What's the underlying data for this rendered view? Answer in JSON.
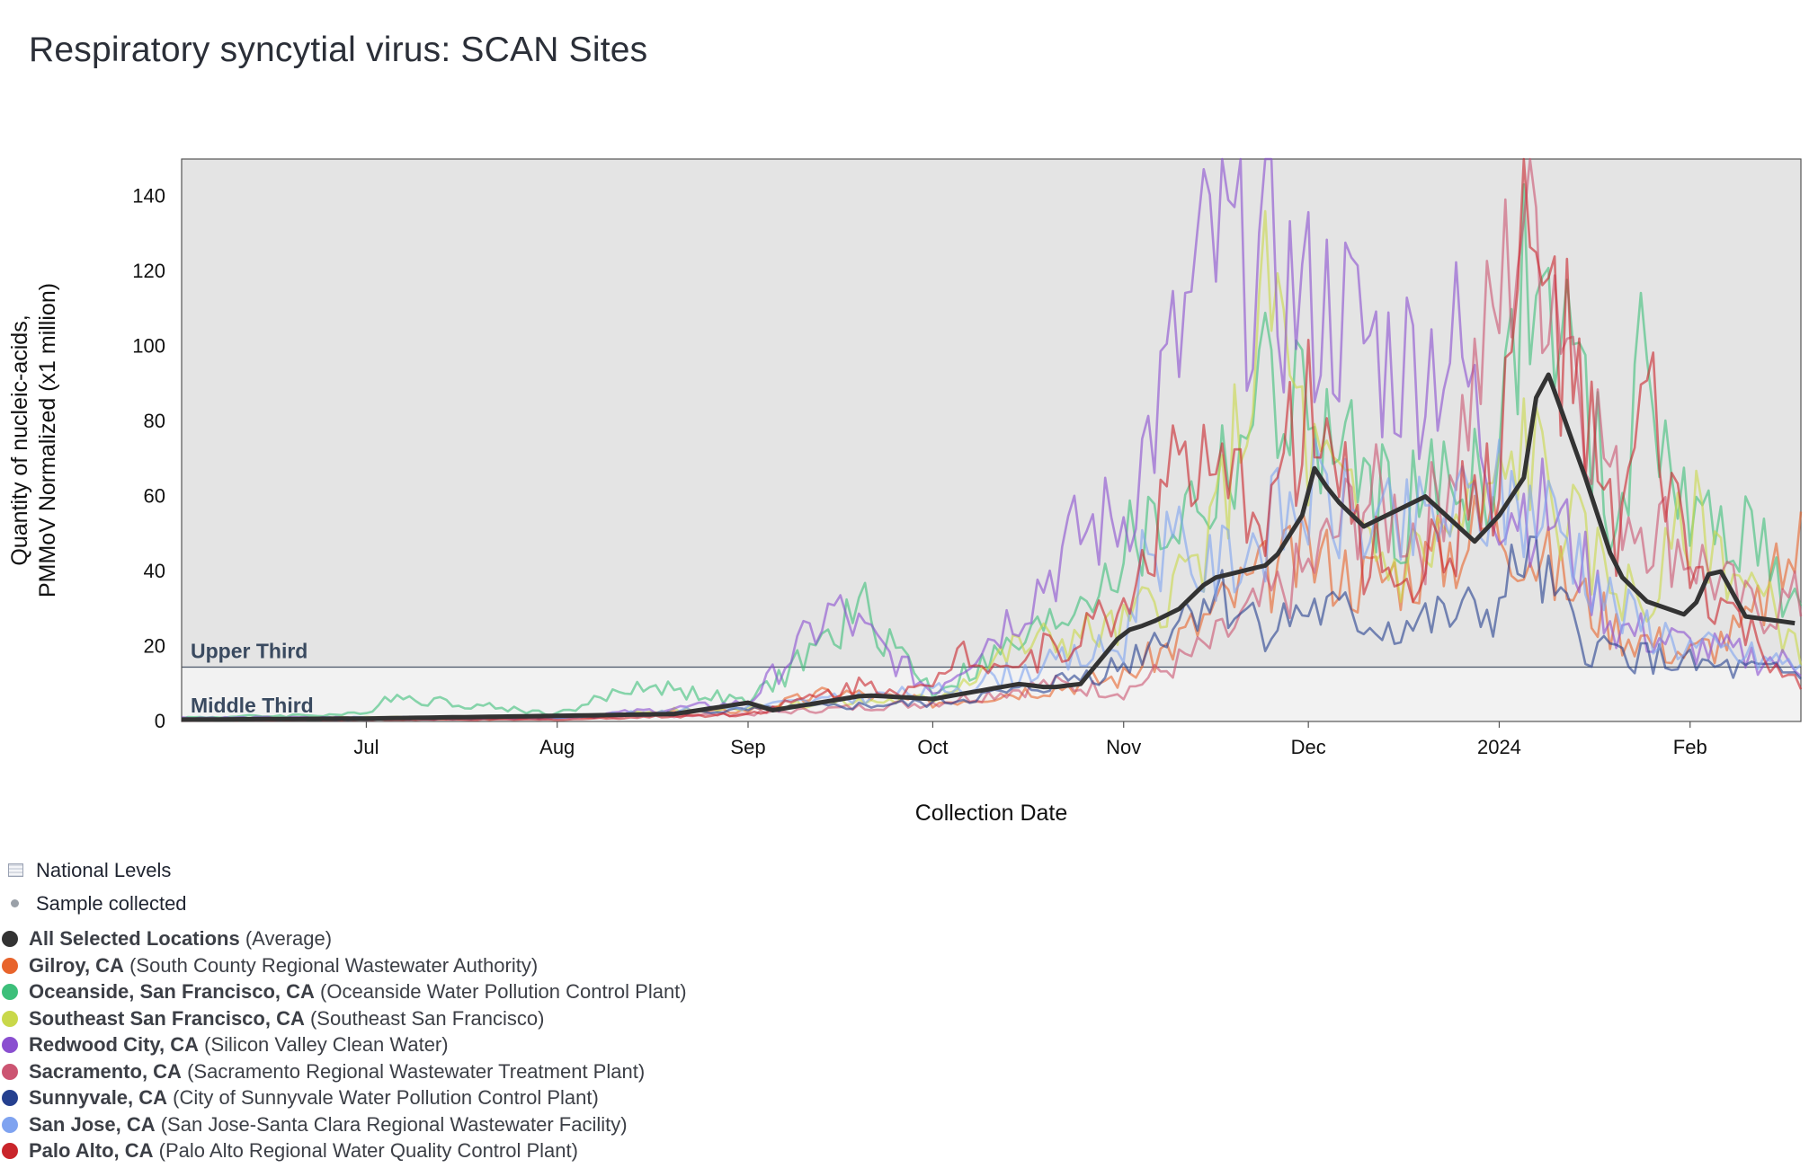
{
  "title": "Respiratory syncytial virus: SCAN Sites",
  "legend_top": [
    {
      "label": "National Levels",
      "icon": "band-swatch-icon"
    },
    {
      "label": "Sample collected",
      "icon": "dot-icon"
    }
  ],
  "chart_data": {
    "type": "line",
    "ylabel_line1": "Quantity of nucleic-acids,",
    "ylabel_line2": "PMMoV Normalized (x1 million)",
    "xlabel": "Collection Date",
    "ylim": [
      0,
      150
    ],
    "yticks": [
      0,
      20,
      40,
      60,
      80,
      100,
      120,
      140
    ],
    "x_start": "2023-06-01",
    "x_end": "2024-02-19",
    "xticks": [
      {
        "date": "2023-07-01",
        "label": "Jul"
      },
      {
        "date": "2023-08-01",
        "label": "Aug"
      },
      {
        "date": "2023-09-01",
        "label": "Sep"
      },
      {
        "date": "2023-10-01",
        "label": "Oct"
      },
      {
        "date": "2023-11-01",
        "label": "Nov"
      },
      {
        "date": "2023-12-01",
        "label": "Dec"
      },
      {
        "date": "2024-01-01",
        "label": "2024"
      },
      {
        "date": "2024-02-01",
        "label": "Feb"
      }
    ],
    "bands": [
      {
        "label": "Upper Third",
        "from": 14.5,
        "to": 150,
        "color": "#e4e4e4"
      },
      {
        "label": "Middle Third",
        "from": 0,
        "to": 14.5,
        "color": "#f2f2f2"
      }
    ],
    "grid": false,
    "series": [
      {
        "name": "Gilroy, CA",
        "desc": "(South County Regional Wastewater Authority)",
        "color": "#e8642c",
        "points": [
          [
            "2023-06-01",
            0.5
          ],
          [
            "2023-07-01",
            0.6
          ],
          [
            "2023-08-01",
            1
          ],
          [
            "2023-09-01",
            3
          ],
          [
            "2023-09-15",
            8
          ],
          [
            "2023-10-01",
            5
          ],
          [
            "2023-10-15",
            8
          ],
          [
            "2023-11-01",
            12
          ],
          [
            "2023-11-10",
            22
          ],
          [
            "2023-11-20",
            35
          ],
          [
            "2023-12-01",
            45
          ],
          [
            "2023-12-10",
            38
          ],
          [
            "2023-12-20",
            42
          ],
          [
            "2024-01-01",
            55
          ],
          [
            "2024-01-10",
            40
          ],
          [
            "2024-01-20",
            25
          ],
          [
            "2024-02-01",
            18
          ],
          [
            "2024-02-10",
            25
          ],
          [
            "2024-02-19",
            48
          ]
        ]
      },
      {
        "name": "Oceanside, San Francisco, CA",
        "desc": "(Oceanside Water Pollution Control Plant)",
        "color": "#3dbf7a",
        "points": [
          [
            "2023-06-01",
            1
          ],
          [
            "2023-07-01",
            2
          ],
          [
            "2023-07-04",
            7
          ],
          [
            "2023-08-01",
            2
          ],
          [
            "2023-08-15",
            10
          ],
          [
            "2023-09-01",
            5
          ],
          [
            "2023-09-20",
            30
          ],
          [
            "2023-10-01",
            8
          ],
          [
            "2023-10-20",
            25
          ],
          [
            "2023-11-01",
            45
          ],
          [
            "2023-11-15",
            60
          ],
          [
            "2023-11-25",
            90
          ],
          [
            "2023-12-01",
            80
          ],
          [
            "2023-12-15",
            55
          ],
          [
            "2024-01-01",
            70
          ],
          [
            "2024-01-05",
            115
          ],
          [
            "2024-01-12",
            100
          ],
          [
            "2024-01-20",
            50
          ],
          [
            "2024-01-25",
            100
          ],
          [
            "2024-02-01",
            50
          ],
          [
            "2024-02-10",
            55
          ],
          [
            "2024-02-19",
            25
          ]
        ]
      },
      {
        "name": "Southeast San Francisco, CA",
        "desc": "(Southeast San Francisco)",
        "color": "#c9d84a",
        "points": [
          [
            "2023-06-01",
            0.5
          ],
          [
            "2023-07-01",
            1
          ],
          [
            "2023-08-01",
            1
          ],
          [
            "2023-09-01",
            4
          ],
          [
            "2023-10-01",
            6
          ],
          [
            "2023-10-15",
            20
          ],
          [
            "2023-11-01",
            25
          ],
          [
            "2023-11-15",
            45
          ],
          [
            "2023-11-25",
            115
          ],
          [
            "2023-12-01",
            70
          ],
          [
            "2023-12-15",
            40
          ],
          [
            "2024-01-01",
            60
          ],
          [
            "2024-01-05",
            75
          ],
          [
            "2024-01-15",
            45
          ],
          [
            "2024-01-25",
            30
          ],
          [
            "2024-02-01",
            55
          ],
          [
            "2024-02-19",
            20
          ]
        ]
      },
      {
        "name": "Redwood City, CA",
        "desc": "(Silicon Valley Clean Water)",
        "color": "#8a4fd0",
        "points": [
          [
            "2023-06-01",
            1
          ],
          [
            "2023-07-01",
            1
          ],
          [
            "2023-08-01",
            1
          ],
          [
            "2023-09-01",
            5
          ],
          [
            "2023-09-15",
            30
          ],
          [
            "2023-10-01",
            8
          ],
          [
            "2023-10-15",
            30
          ],
          [
            "2023-10-25",
            50
          ],
          [
            "2023-11-01",
            55
          ],
          [
            "2023-11-10",
            100
          ],
          [
            "2023-11-15",
            125
          ],
          [
            "2023-11-25",
            120
          ],
          [
            "2023-12-01",
            110
          ],
          [
            "2023-12-05",
            110
          ],
          [
            "2023-12-15",
            95
          ],
          [
            "2023-12-25",
            100
          ],
          [
            "2024-01-01",
            60
          ],
          [
            "2024-01-10",
            55
          ],
          [
            "2024-01-20",
            25
          ],
          [
            "2024-02-01",
            20
          ],
          [
            "2024-02-19",
            15
          ]
        ]
      },
      {
        "name": "Sacramento, CA",
        "desc": "(Sacramento Regional Wastewater Treatment Plant)",
        "color": "#cc5572",
        "points": [
          [
            "2023-06-01",
            0.3
          ],
          [
            "2023-07-01",
            0.5
          ],
          [
            "2023-08-01",
            1
          ],
          [
            "2023-09-01",
            2
          ],
          [
            "2023-10-01",
            5
          ],
          [
            "2023-10-20",
            10
          ],
          [
            "2023-11-01",
            8
          ],
          [
            "2023-11-15",
            20
          ],
          [
            "2023-12-01",
            40
          ],
          [
            "2023-12-10",
            60
          ],
          [
            "2023-12-20",
            50
          ],
          [
            "2023-12-27",
            85
          ],
          [
            "2024-01-01",
            110
          ],
          [
            "2024-01-05",
            140
          ],
          [
            "2024-01-10",
            120
          ],
          [
            "2024-01-20",
            60
          ],
          [
            "2024-02-01",
            45
          ],
          [
            "2024-02-10",
            30
          ],
          [
            "2024-02-19",
            32
          ]
        ]
      },
      {
        "name": "Sunnyvale, CA",
        "desc": "(City of Sunnyvale Water Pollution Control Plant)",
        "color": "#25408f",
        "points": [
          [
            "2023-06-01",
            0.5
          ],
          [
            "2023-07-01",
            0.5
          ],
          [
            "2023-08-01",
            1
          ],
          [
            "2023-09-01",
            3
          ],
          [
            "2023-10-01",
            5
          ],
          [
            "2023-10-15",
            8
          ],
          [
            "2023-11-01",
            15
          ],
          [
            "2023-11-15",
            35
          ],
          [
            "2023-11-25",
            25
          ],
          [
            "2023-12-01",
            30
          ],
          [
            "2023-12-15",
            25
          ],
          [
            "2024-01-01",
            30
          ],
          [
            "2024-01-05",
            45
          ],
          [
            "2024-01-15",
            20
          ],
          [
            "2024-02-01",
            15
          ],
          [
            "2024-02-19",
            12
          ]
        ]
      },
      {
        "name": "San Jose, CA",
        "desc": "(San Jose-Santa Clara Regional Wastewater Facility)",
        "color": "#7fa3f0",
        "points": [
          [
            "2023-06-01",
            0.5
          ],
          [
            "2023-07-01",
            1
          ],
          [
            "2023-08-01",
            1
          ],
          [
            "2023-09-01",
            4
          ],
          [
            "2023-10-01",
            8
          ],
          [
            "2023-10-20",
            15
          ],
          [
            "2023-11-01",
            20
          ],
          [
            "2023-11-05",
            50
          ],
          [
            "2023-11-15",
            40
          ],
          [
            "2023-12-01",
            60
          ],
          [
            "2023-12-15",
            50
          ],
          [
            "2024-01-01",
            60
          ],
          [
            "2024-01-10",
            55
          ],
          [
            "2024-01-20",
            30
          ],
          [
            "2024-02-01",
            20
          ],
          [
            "2024-02-19",
            15
          ]
        ]
      },
      {
        "name": "Palo Alto, CA",
        "desc": "(Palo Alto Regional Water Quality Control Plant)",
        "color": "#c9252b",
        "points": [
          [
            "2023-06-01",
            0.3
          ],
          [
            "2023-07-01",
            0.5
          ],
          [
            "2023-08-01",
            0.5
          ],
          [
            "2023-09-01",
            2
          ],
          [
            "2023-09-20",
            10
          ],
          [
            "2023-10-01",
            8
          ],
          [
            "2023-10-05",
            20
          ],
          [
            "2023-10-15",
            15
          ],
          [
            "2023-11-01",
            30
          ],
          [
            "2023-11-10",
            70
          ],
          [
            "2023-11-15",
            60
          ],
          [
            "2023-11-25",
            60
          ],
          [
            "2023-12-01",
            85
          ],
          [
            "2023-12-10",
            45
          ],
          [
            "2023-12-20",
            40
          ],
          [
            "2024-01-01",
            70
          ],
          [
            "2024-01-05",
            125
          ],
          [
            "2024-01-10",
            110
          ],
          [
            "2024-01-20",
            45
          ],
          [
            "2024-01-25",
            85
          ],
          [
            "2024-02-01",
            40
          ],
          [
            "2024-02-19",
            8
          ]
        ]
      },
      {
        "name": "All Selected Locations",
        "desc": "(Average)",
        "color": "#333333",
        "average": true,
        "points": [
          [
            "2023-06-01",
            0.5
          ],
          [
            "2023-07-01",
            0.8
          ],
          [
            "2023-08-01",
            1.5
          ],
          [
            "2023-08-20",
            2
          ],
          [
            "2023-09-01",
            5
          ],
          [
            "2023-09-05",
            3
          ],
          [
            "2023-09-20",
            7
          ],
          [
            "2023-10-01",
            6
          ],
          [
            "2023-10-15",
            10
          ],
          [
            "2023-10-20",
            9
          ],
          [
            "2023-10-25",
            10
          ],
          [
            "2023-11-01",
            24
          ],
          [
            "2023-11-05",
            26
          ],
          [
            "2023-11-10",
            30
          ],
          [
            "2023-11-15",
            38
          ],
          [
            "2023-11-25",
            42
          ],
          [
            "2023-11-30",
            55
          ],
          [
            "2023-12-01",
            70
          ],
          [
            "2023-12-05",
            60
          ],
          [
            "2023-12-10",
            52
          ],
          [
            "2023-12-20",
            60
          ],
          [
            "2023-12-28",
            48
          ],
          [
            "2024-01-01",
            55
          ],
          [
            "2024-01-05",
            65
          ],
          [
            "2024-01-08",
            97
          ],
          [
            "2024-01-10",
            88
          ],
          [
            "2024-01-15",
            65
          ],
          [
            "2024-01-20",
            40
          ],
          [
            "2024-01-25",
            32
          ],
          [
            "2024-02-01",
            28
          ],
          [
            "2024-02-05",
            43
          ],
          [
            "2024-02-10",
            28
          ],
          [
            "2024-02-19",
            26
          ]
        ]
      }
    ]
  }
}
